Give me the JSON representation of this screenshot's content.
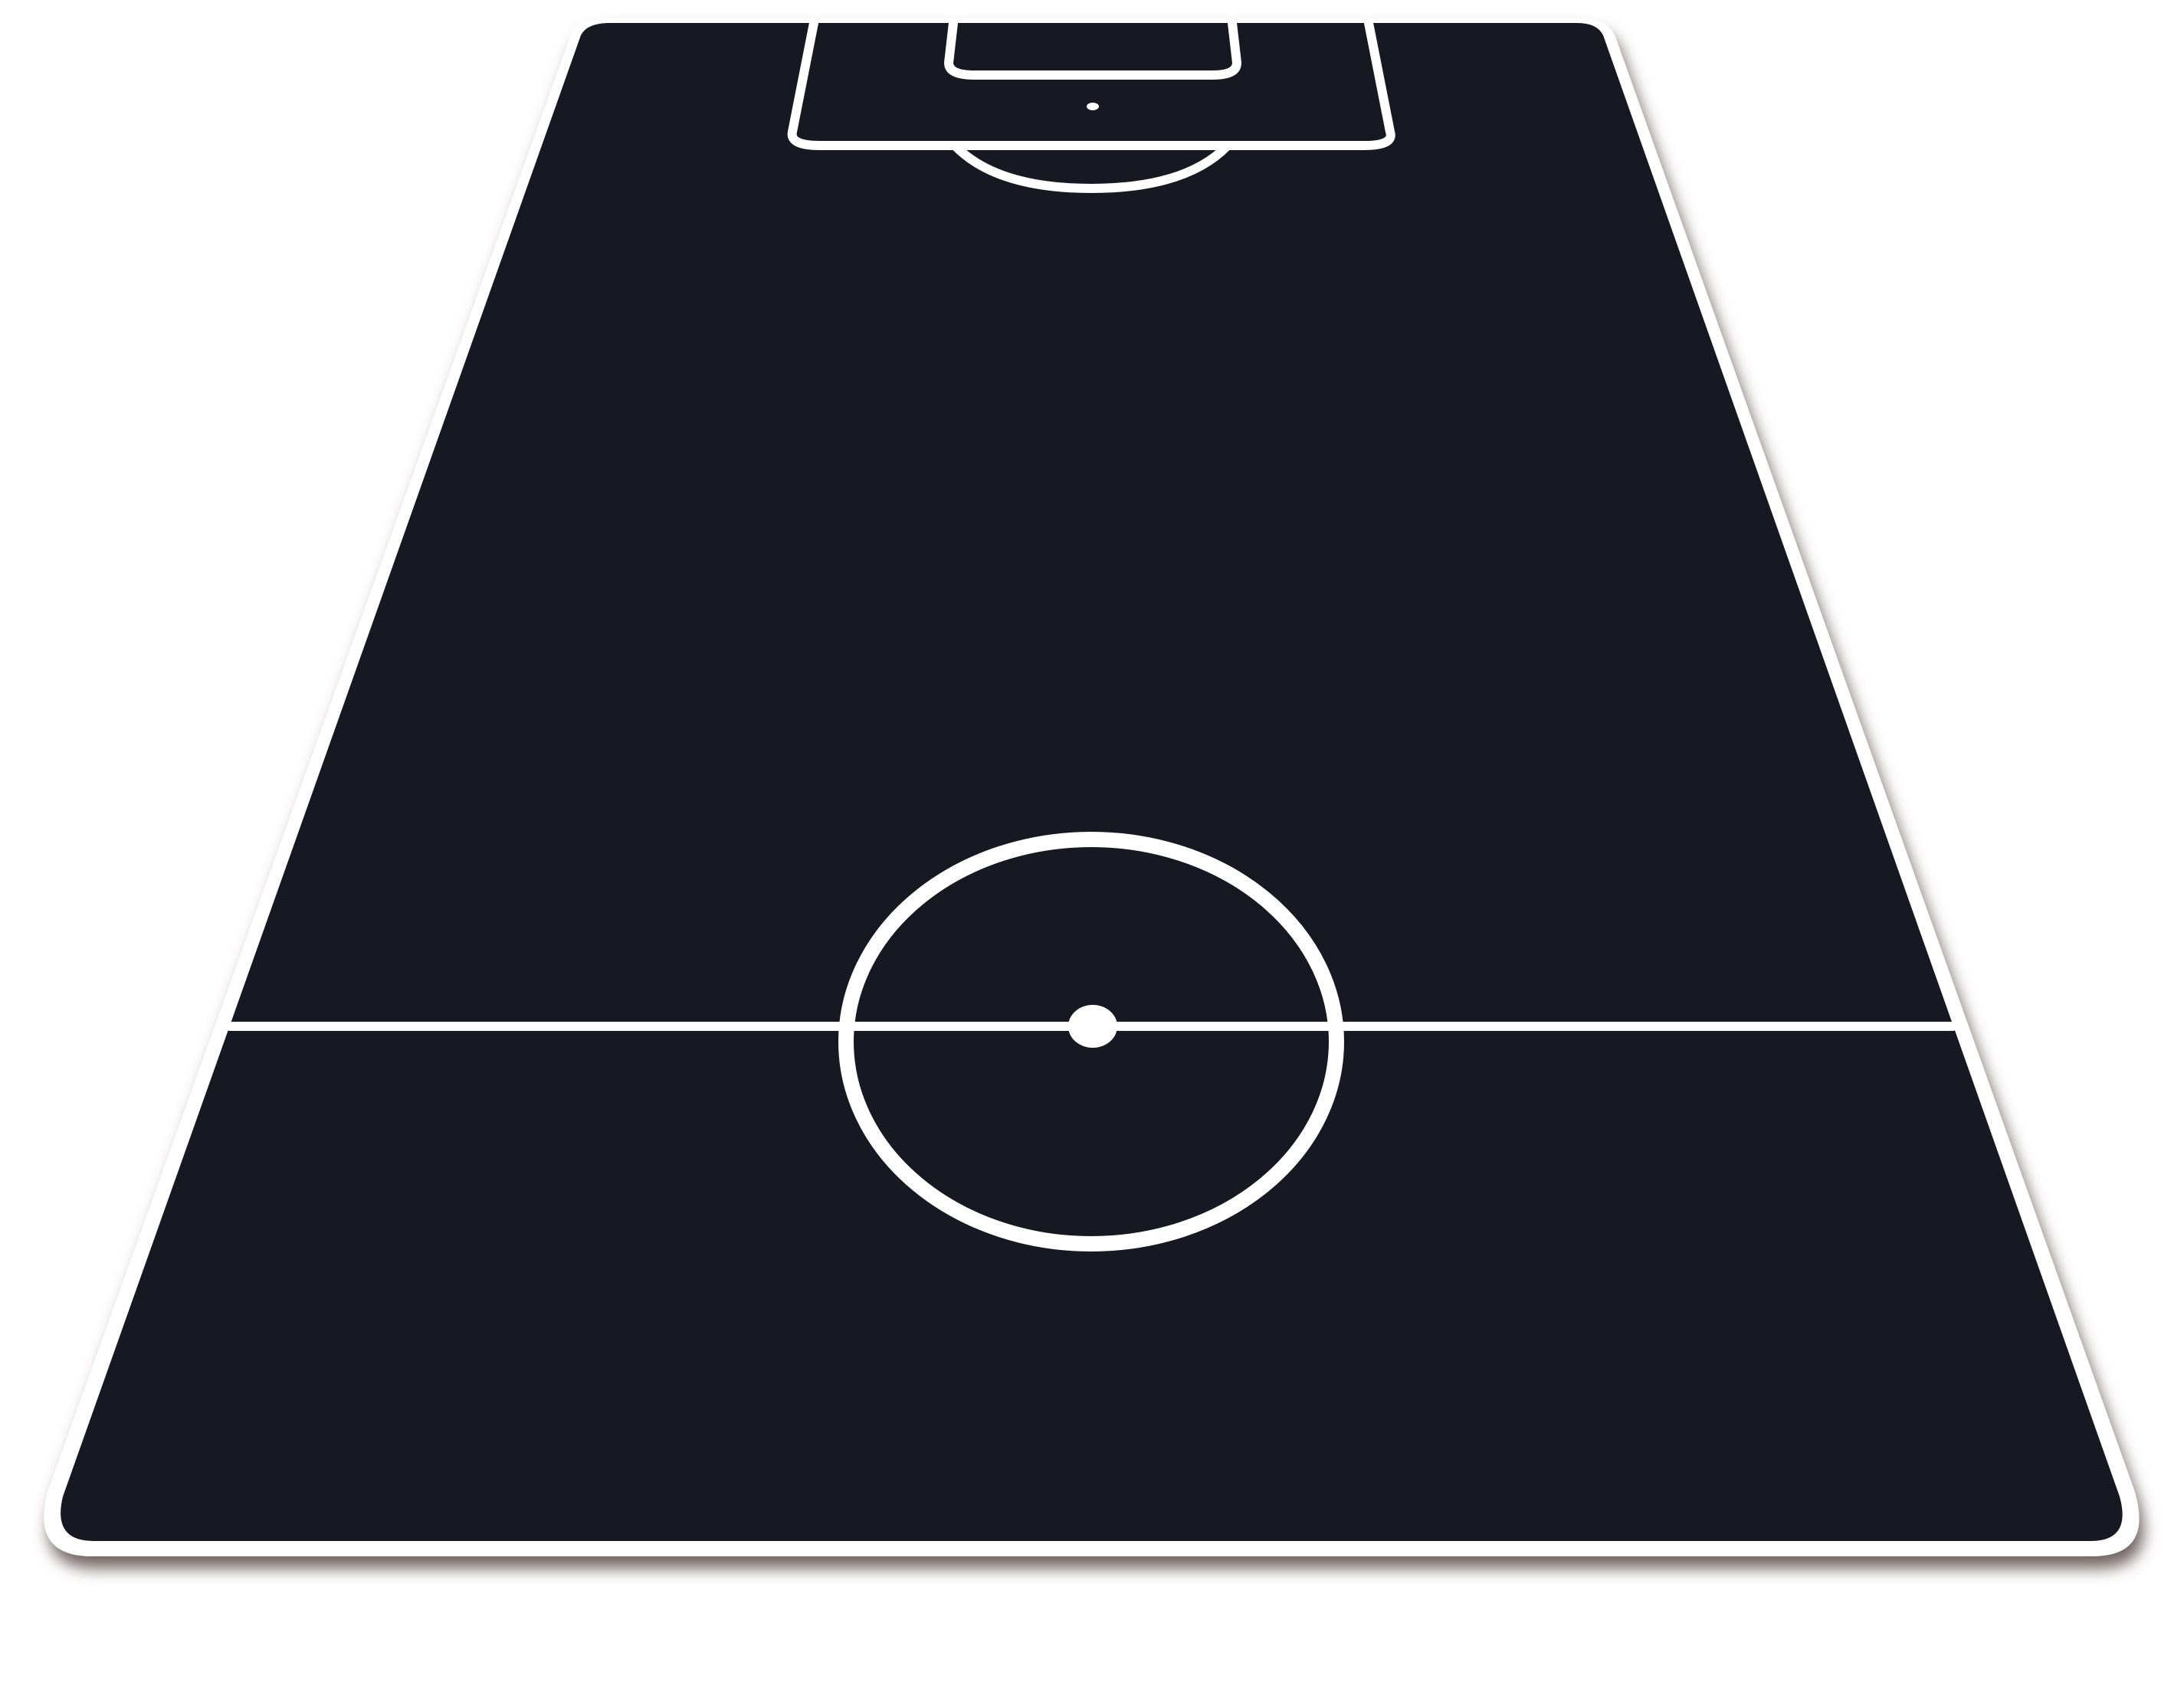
{
  "colors": {
    "background": "#ffffff",
    "board_border": "#ffffff",
    "pitch": "#161922",
    "lines": "#ffffff",
    "shadow": "#5a4a48"
  },
  "icon": "football-pitch-icon"
}
